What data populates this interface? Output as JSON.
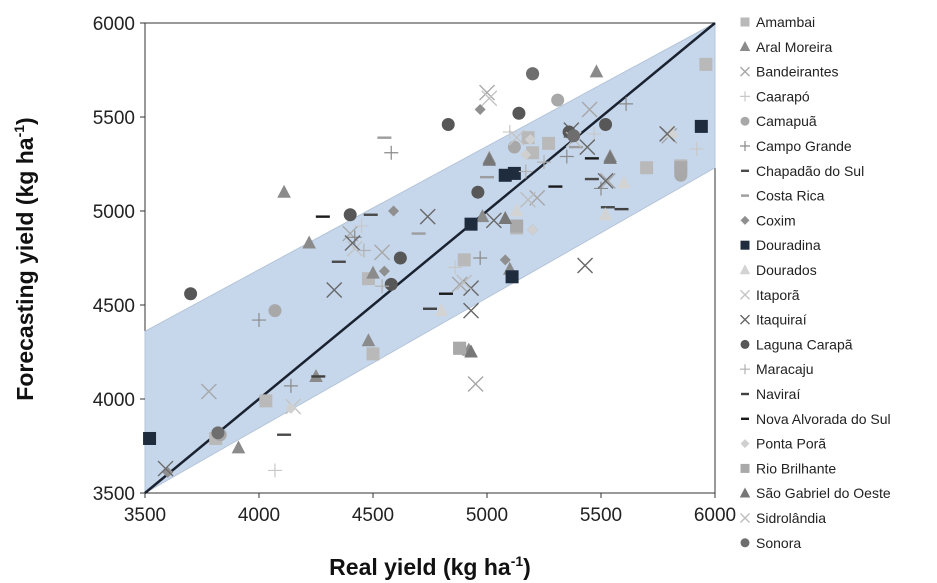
{
  "chart_data": {
    "type": "scatter",
    "xlabel": "Real yield (kg ha",
    "xlabel_sup": "-1",
    "xlabel_end": ")",
    "ylabel": "Forecasting yield (kg ha",
    "ylabel_sup": "-1",
    "ylabel_end": ")",
    "xlim": [
      3500,
      6000
    ],
    "ylim": [
      3500,
      6000
    ],
    "x_ticks": [
      3500,
      4000,
      4500,
      5000,
      5500,
      6000
    ],
    "y_ticks": [
      3500,
      4000,
      4500,
      5000,
      5500,
      6000
    ],
    "grid": false,
    "legend_position": "right",
    "reference_line": {
      "from": [
        3500,
        3500
      ],
      "to": [
        6000,
        6000
      ],
      "color": "#1a2230"
    },
    "confidence_band": {
      "upper": [
        [
          3500,
          4360
        ],
        [
          6000,
          6000
        ]
      ],
      "lower": [
        [
          3500,
          3500
        ],
        [
          6000,
          5230
        ]
      ],
      "color": "#c6d7ec"
    },
    "series": [
      {
        "name": "Amambai",
        "marker": "square",
        "color": "#b9b9b9",
        "points": [
          [
            4480,
            4640
          ],
          [
            4500,
            4240
          ],
          [
            4880,
            4270
          ],
          [
            4900,
            4740
          ],
          [
            5130,
            4910
          ],
          [
            5270,
            5360
          ],
          [
            5700,
            5230
          ],
          [
            5850,
            5240
          ],
          [
            5960,
            5780
          ],
          [
            3810,
            3790
          ],
          [
            4030,
            3990
          ],
          [
            5200,
            5310
          ],
          [
            5180,
            5390
          ]
        ]
      },
      {
        "name": "Aral Moreira",
        "marker": "triangle",
        "color": "#8b8b8b",
        "points": [
          [
            4110,
            5100
          ],
          [
            4220,
            4830
          ],
          [
            4500,
            4670
          ],
          [
            4480,
            4310
          ],
          [
            4920,
            4260
          ],
          [
            5010,
            5280
          ],
          [
            4980,
            4970
          ],
          [
            5480,
            5740
          ],
          [
            5540,
            5290
          ],
          [
            3910,
            3740
          ],
          [
            4250,
            4120
          ],
          [
            5100,
            4690
          ]
        ]
      },
      {
        "name": "Bandeirantes",
        "marker": "x",
        "color": "#a7a7a7",
        "points": [
          [
            3780,
            4040
          ],
          [
            4400,
            4880
          ],
          [
            4540,
            4780
          ],
          [
            5000,
            5630
          ],
          [
            5220,
            5070
          ],
          [
            5450,
            5540
          ],
          [
            5800,
            5400
          ],
          [
            5530,
            5160
          ],
          [
            4950,
            4080
          ],
          [
            4880,
            4610
          ]
        ]
      },
      {
        "name": "Caarapó",
        "marker": "plus",
        "color": "#c8c8c8",
        "points": [
          [
            4070,
            3620
          ],
          [
            4450,
            4920
          ],
          [
            5100,
            5420
          ],
          [
            5470,
            5410
          ],
          [
            5920,
            5330
          ],
          [
            4860,
            4700
          ]
        ]
      },
      {
        "name": "Camapuã",
        "marker": "circle",
        "color": "#a8a8a8",
        "points": [
          [
            4070,
            4470
          ],
          [
            5120,
            5340
          ],
          [
            5310,
            5590
          ],
          [
            5850,
            5190
          ],
          [
            3830,
            3810
          ]
        ]
      },
      {
        "name": "Campo Grande",
        "marker": "plus",
        "color": "#8a8a8a",
        "points": [
          [
            4000,
            4420
          ],
          [
            4140,
            4070
          ],
          [
            4420,
            4860
          ],
          [
            4580,
            5310
          ],
          [
            5350,
            5290
          ],
          [
            5500,
            5120
          ],
          [
            5610,
            5570
          ],
          [
            4970,
            4750
          ]
        ]
      },
      {
        "name": "Chapadão do Sul",
        "marker": "dash",
        "color": "#4a4a4a",
        "points": [
          [
            4110,
            3810
          ],
          [
            4350,
            4730
          ],
          [
            4490,
            4980
          ],
          [
            5460,
            5170
          ],
          [
            5530,
            5020
          ]
        ]
      },
      {
        "name": "Costa Rica",
        "marker": "dash",
        "color": "#9d9d9d",
        "points": [
          [
            4550,
            5390
          ],
          [
            4700,
            4880
          ],
          [
            5000,
            5180
          ],
          [
            5390,
            5340
          ]
        ]
      },
      {
        "name": "Coxim",
        "marker": "diamond",
        "color": "#8f8f8f",
        "points": [
          [
            4550,
            4680
          ],
          [
            4590,
            5000
          ],
          [
            4970,
            5540
          ],
          [
            5080,
            4740
          ],
          [
            5200,
            4900
          ],
          [
            3600,
            3610
          ]
        ]
      },
      {
        "name": "Douradina",
        "marker": "square",
        "color": "#1f2c3e",
        "points": [
          [
            3520,
            3790
          ],
          [
            4930,
            4930
          ],
          [
            5080,
            5190
          ],
          [
            5110,
            4650
          ],
          [
            5120,
            5200
          ],
          [
            5940,
            5450
          ]
        ]
      },
      {
        "name": "Dourados",
        "marker": "triangle",
        "color": "#d3d3d3",
        "points": [
          [
            4800,
            4470
          ],
          [
            5130,
            5000
          ],
          [
            5520,
            4980
          ],
          [
            5600,
            5150
          ],
          [
            5810,
            5420
          ]
        ]
      },
      {
        "name": "Itaporã",
        "marker": "x",
        "color": "#c4c4c4",
        "points": [
          [
            5010,
            5600
          ],
          [
            5130,
            5390
          ],
          [
            4420,
            4800
          ],
          [
            4150,
            3960
          ]
        ]
      },
      {
        "name": "Itaquiraí",
        "marker": "x",
        "color": "#686868",
        "points": [
          [
            3590,
            3630
          ],
          [
            4330,
            4580
          ],
          [
            4410,
            4830
          ],
          [
            4740,
            4970
          ],
          [
            4930,
            4470
          ],
          [
            4930,
            4590
          ],
          [
            5030,
            4950
          ],
          [
            5430,
            4710
          ],
          [
            5520,
            5160
          ],
          [
            5370,
            5430
          ],
          [
            5440,
            5340
          ],
          [
            5790,
            5410
          ]
        ]
      },
      {
        "name": "Laguna Carapã",
        "marker": "circle",
        "color": "#575757",
        "points": [
          [
            3700,
            4560
          ],
          [
            4400,
            4980
          ],
          [
            4580,
            4610
          ],
          [
            4620,
            4750
          ],
          [
            4830,
            5460
          ],
          [
            4960,
            5100
          ],
          [
            5140,
            5520
          ],
          [
            5200,
            5730
          ],
          [
            5360,
            5420
          ],
          [
            5520,
            5460
          ]
        ]
      },
      {
        "name": "Maracaju",
        "marker": "plus",
        "color": "#b0b0b0",
        "points": [
          [
            4460,
            4790
          ],
          [
            4540,
            4600
          ],
          [
            5170,
            5210
          ],
          [
            5250,
            5260
          ]
        ]
      },
      {
        "name": "Naviraí",
        "marker": "dash",
        "color": "#404040",
        "points": [
          [
            4260,
            4120
          ],
          [
            4750,
            4480
          ],
          [
            5590,
            5010
          ]
        ]
      },
      {
        "name": "Nova Alvorada do Sul",
        "marker": "dash",
        "color": "#1a1a1a",
        "points": [
          [
            4280,
            4970
          ],
          [
            4820,
            4560
          ],
          [
            5300,
            5130
          ],
          [
            5460,
            5280
          ]
        ]
      },
      {
        "name": "Ponta Porã",
        "marker": "diamond",
        "color": "#d0d0d0",
        "points": [
          [
            4140,
            3950
          ],
          [
            5170,
            5300
          ],
          [
            5190,
            5380
          ],
          [
            5200,
            4900
          ]
        ]
      },
      {
        "name": "Rio Brilhante",
        "marker": "square",
        "color": "#a9a9a9",
        "points": [
          [
            4880,
            4270
          ],
          [
            5130,
            4920
          ],
          [
            5850,
            5230
          ]
        ]
      },
      {
        "name": "São Gabriel do Oeste",
        "marker": "triangle",
        "color": "#777777",
        "points": [
          [
            4930,
            4250
          ],
          [
            5010,
            5270
          ],
          [
            5080,
            4960
          ],
          [
            5540,
            5280
          ]
        ]
      },
      {
        "name": "Sidrolândia",
        "marker": "x",
        "color": "#bdbdbd",
        "points": [
          [
            4900,
            4620
          ],
          [
            5180,
            5060
          ],
          [
            5380,
            5380
          ]
        ]
      },
      {
        "name": "Sonora",
        "marker": "circle",
        "color": "#6e6e6e",
        "points": [
          [
            3820,
            3820
          ],
          [
            5200,
            5730
          ],
          [
            5380,
            5400
          ]
        ]
      }
    ]
  }
}
